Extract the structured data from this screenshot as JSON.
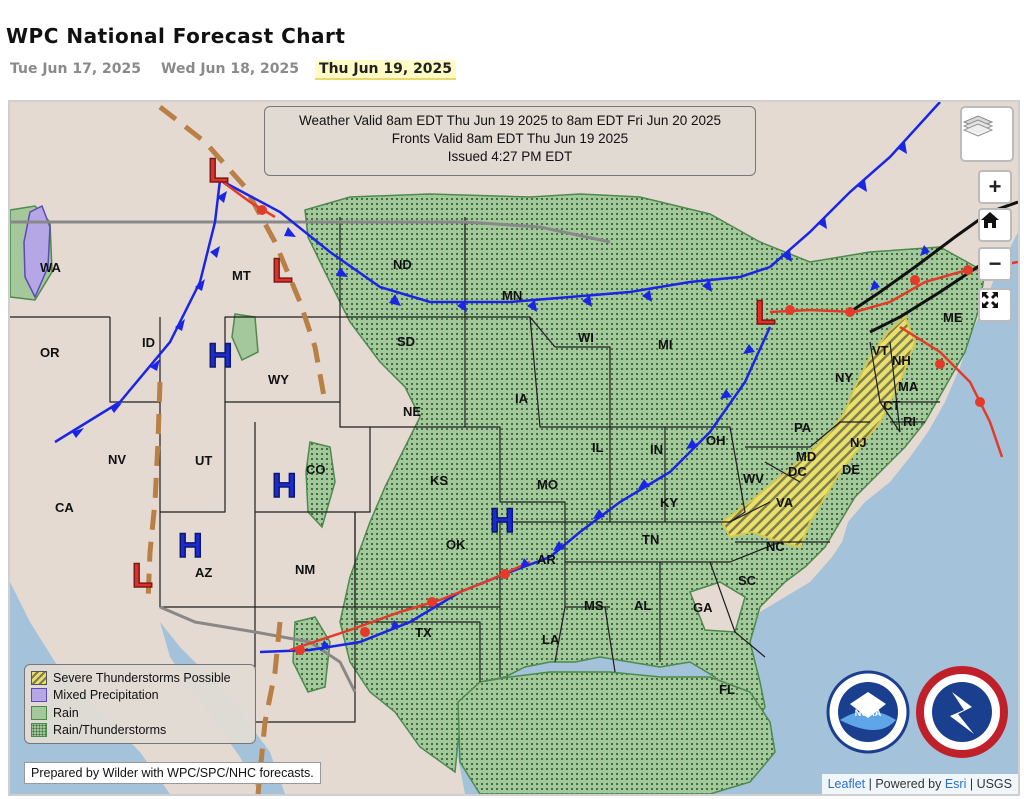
{
  "page": {
    "title": "WPC National Forecast Chart",
    "tabs": [
      {
        "label": "Tue Jun 17, 2025",
        "active": false
      },
      {
        "label": "Wed Jun 18, 2025",
        "active": false
      },
      {
        "label": "Thu Jun 19, 2025",
        "active": true
      }
    ]
  },
  "valid_box": {
    "line1": "Weather Valid 8am EDT Thu Jun 19 2025 to 8am EDT Fri Jun 20 2025",
    "line2": "Fronts Valid 8am EDT Thu Jun 19 2025",
    "line3": "Issued 4:27 PM EDT"
  },
  "controls": {
    "layers_icon": "layers-icon",
    "zoom_in": "+",
    "home_icon": "home-icon",
    "zoom_out": "−",
    "fullscreen_icon": "fullscreen-icon"
  },
  "legend": [
    {
      "label": "Severe Thunderstorms Possible",
      "key": "severe"
    },
    {
      "label": "Mixed Precipitation",
      "key": "mixed"
    },
    {
      "label": "Rain",
      "key": "rain"
    },
    {
      "label": "Rain/Thunderstorms",
      "key": "tstorm"
    }
  ],
  "prepared_by": "Prepared by Wilder with WPC/SPC/NHC forecasts.",
  "attribution": {
    "leaflet": "Leaflet",
    "powered": "| Powered by",
    "esri": "Esri",
    "usgs": "| USGS"
  },
  "pressure_centers": [
    {
      "type": "L",
      "near": "northern Idaho / Montana border"
    },
    {
      "type": "L",
      "near": "central Montana"
    },
    {
      "type": "L",
      "near": "northern Michigan / Ontario"
    },
    {
      "type": "L",
      "near": "Arizona / California border"
    },
    {
      "type": "H",
      "near": "western Wyoming"
    },
    {
      "type": "H",
      "near": "western Colorado"
    },
    {
      "type": "H",
      "near": "Arizona"
    },
    {
      "type": "H",
      "near": "eastern Kansas"
    }
  ],
  "states": [
    "WA",
    "OR",
    "CA",
    "NV",
    "ID",
    "MT",
    "WY",
    "UT",
    "AZ",
    "CO",
    "NM",
    "ND",
    "SD",
    "NE",
    "KS",
    "OK",
    "TX",
    "MN",
    "IA",
    "MO",
    "AR",
    "LA",
    "WI",
    "IL",
    "MI",
    "IN",
    "OH",
    "KY",
    "TN",
    "MS",
    "AL",
    "GA",
    "FL",
    "SC",
    "NC",
    "VA",
    "WV",
    "PA",
    "NY",
    "MD",
    "DC",
    "DE",
    "NJ",
    "CT",
    "RI",
    "MA",
    "VT",
    "NH",
    "ME"
  ],
  "colors": {
    "ocean": "#a4c2da",
    "land": "#e5dad1",
    "rain": "#a5c79c",
    "severe": "#e9e06b",
    "cold_front": "#1a25e6",
    "warm_front": "#e43a2a",
    "trough": "#b98045",
    "low": "#e0302a",
    "high": "#1a2bd0"
  },
  "logos": [
    "noaa-logo",
    "national-weather-service-logo"
  ]
}
